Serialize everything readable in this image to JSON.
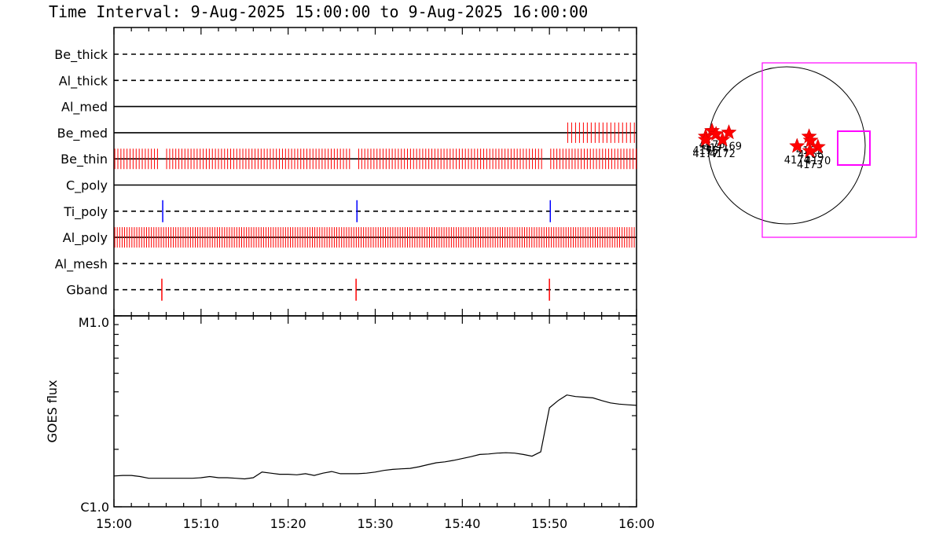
{
  "title": "Time Interval:  9-Aug-2025 15:00:00 to  9-Aug-2025 16:00:00",
  "colors": {
    "red": "#ff0000",
    "blue": "#0000ff",
    "magenta": "#ff00ff",
    "axis": "#000000"
  },
  "chart_data": [
    {
      "type": "timeline",
      "name_note": "",
      "x_ticks": [
        "15:00",
        "15:10",
        "15:20",
        "15:30",
        "15:40",
        "15:50",
        "16:00"
      ],
      "xlim_minutes": [
        0,
        60
      ],
      "channels": [
        {
          "label": "Be_thick",
          "style": "dashed",
          "events": []
        },
        {
          "label": "Al_thick",
          "style": "dashed",
          "events": []
        },
        {
          "label": "Al_med",
          "style": "solid",
          "events": []
        },
        {
          "label": "Be_med",
          "style": "solid",
          "events": [],
          "dense_range_minutes": [
            52,
            60
          ],
          "dense_spacing": 0.45,
          "color": "red"
        },
        {
          "label": "Be_thin",
          "style": "solid",
          "events": [],
          "dense_range_minutes": [
            0,
            60
          ],
          "dense_spacing": 0.35,
          "color": "red",
          "gaps_minutes": [
            5.6,
            27.6,
            49.7
          ]
        },
        {
          "label": "C_poly",
          "style": "solid",
          "events": []
        },
        {
          "label": "Ti_poly",
          "style": "dashed",
          "events": [
            5.6,
            27.9,
            50.1
          ],
          "color": "blue"
        },
        {
          "label": "Al_poly",
          "style": "solid",
          "events": [],
          "dense_range_minutes": [
            0,
            60
          ],
          "dense_spacing": 0.28,
          "color": "red"
        },
        {
          "label": "Al_mesh",
          "style": "dashed",
          "events": []
        },
        {
          "label": "Gband",
          "style": "dashed",
          "events": [
            5.5,
            27.8,
            50.0
          ],
          "color": "red"
        }
      ]
    },
    {
      "type": "line",
      "ylabel": "GOES flux",
      "y_tick_labels": [
        "C1.0",
        "M1.0"
      ],
      "ylim_flux": [
        1e-06,
        1e-05
      ],
      "y_scale": "log",
      "x_ticks": [
        "15:00",
        "15:10",
        "15:20",
        "15:30",
        "15:40",
        "15:50",
        "16:00"
      ],
      "x_minutes": [
        0,
        1,
        2,
        3,
        4,
        5,
        6,
        7,
        8,
        9,
        10,
        11,
        12,
        13,
        14,
        15,
        16,
        17,
        18,
        19,
        20,
        21,
        22,
        23,
        24,
        25,
        26,
        27,
        28,
        29,
        30,
        31,
        32,
        33,
        34,
        35,
        36,
        37,
        38,
        39,
        40,
        41,
        42,
        43,
        44,
        45,
        46,
        47,
        48,
        49,
        50,
        51,
        52,
        53,
        54,
        55,
        56,
        57,
        58,
        59,
        60
      ],
      "values": [
        1.45e-06,
        1.46e-06,
        1.46e-06,
        1.44e-06,
        1.41e-06,
        1.41e-06,
        1.41e-06,
        1.41e-06,
        1.41e-06,
        1.41e-06,
        1.42e-06,
        1.44e-06,
        1.42e-06,
        1.42e-06,
        1.41e-06,
        1.4e-06,
        1.42e-06,
        1.52e-06,
        1.5e-06,
        1.48e-06,
        1.48e-06,
        1.47e-06,
        1.49e-06,
        1.46e-06,
        1.5e-06,
        1.53e-06,
        1.49e-06,
        1.49e-06,
        1.49e-06,
        1.5e-06,
        1.52e-06,
        1.55e-06,
        1.57e-06,
        1.58e-06,
        1.59e-06,
        1.62e-06,
        1.66e-06,
        1.7e-06,
        1.72e-06,
        1.75e-06,
        1.79e-06,
        1.83e-06,
        1.88e-06,
        1.89e-06,
        1.91e-06,
        1.92e-06,
        1.91e-06,
        1.88e-06,
        1.84e-06,
        1.94e-06,
        3.3e-06,
        3.6e-06,
        3.85e-06,
        3.78e-06,
        3.75e-06,
        3.72e-06,
        3.6e-06,
        3.5e-06,
        3.45e-06,
        3.42e-06,
        3.4e-06
      ]
    },
    {
      "type": "map",
      "active_regions": [
        {
          "label": "4176",
          "x_arcsec": -930,
          "y_arcsec": 180
        },
        {
          "label": "4171",
          "x_arcsec": -880,
          "y_arcsec": 140
        },
        {
          "label": "4169",
          "x_arcsec": -720,
          "y_arcsec": 160
        },
        {
          "label": "4175",
          "x_arcsec": -1010,
          "y_arcsec": 110
        },
        {
          "label": "4177",
          "x_arcsec": -1010,
          "y_arcsec": 70
        },
        {
          "label": "4172",
          "x_arcsec": -800,
          "y_arcsec": 70
        },
        {
          "label": "4165",
          "x_arcsec": 280,
          "y_arcsec": 110
        },
        {
          "label": "4168",
          "x_arcsec": 300,
          "y_arcsec": 60
        },
        {
          "label": "4174",
          "x_arcsec": 130,
          "y_arcsec": -10
        },
        {
          "label": "4170",
          "x_arcsec": 390,
          "y_arcsec": -20
        },
        {
          "label": "4173",
          "x_arcsec": 290,
          "y_arcsec": -70
        }
      ]
    }
  ]
}
